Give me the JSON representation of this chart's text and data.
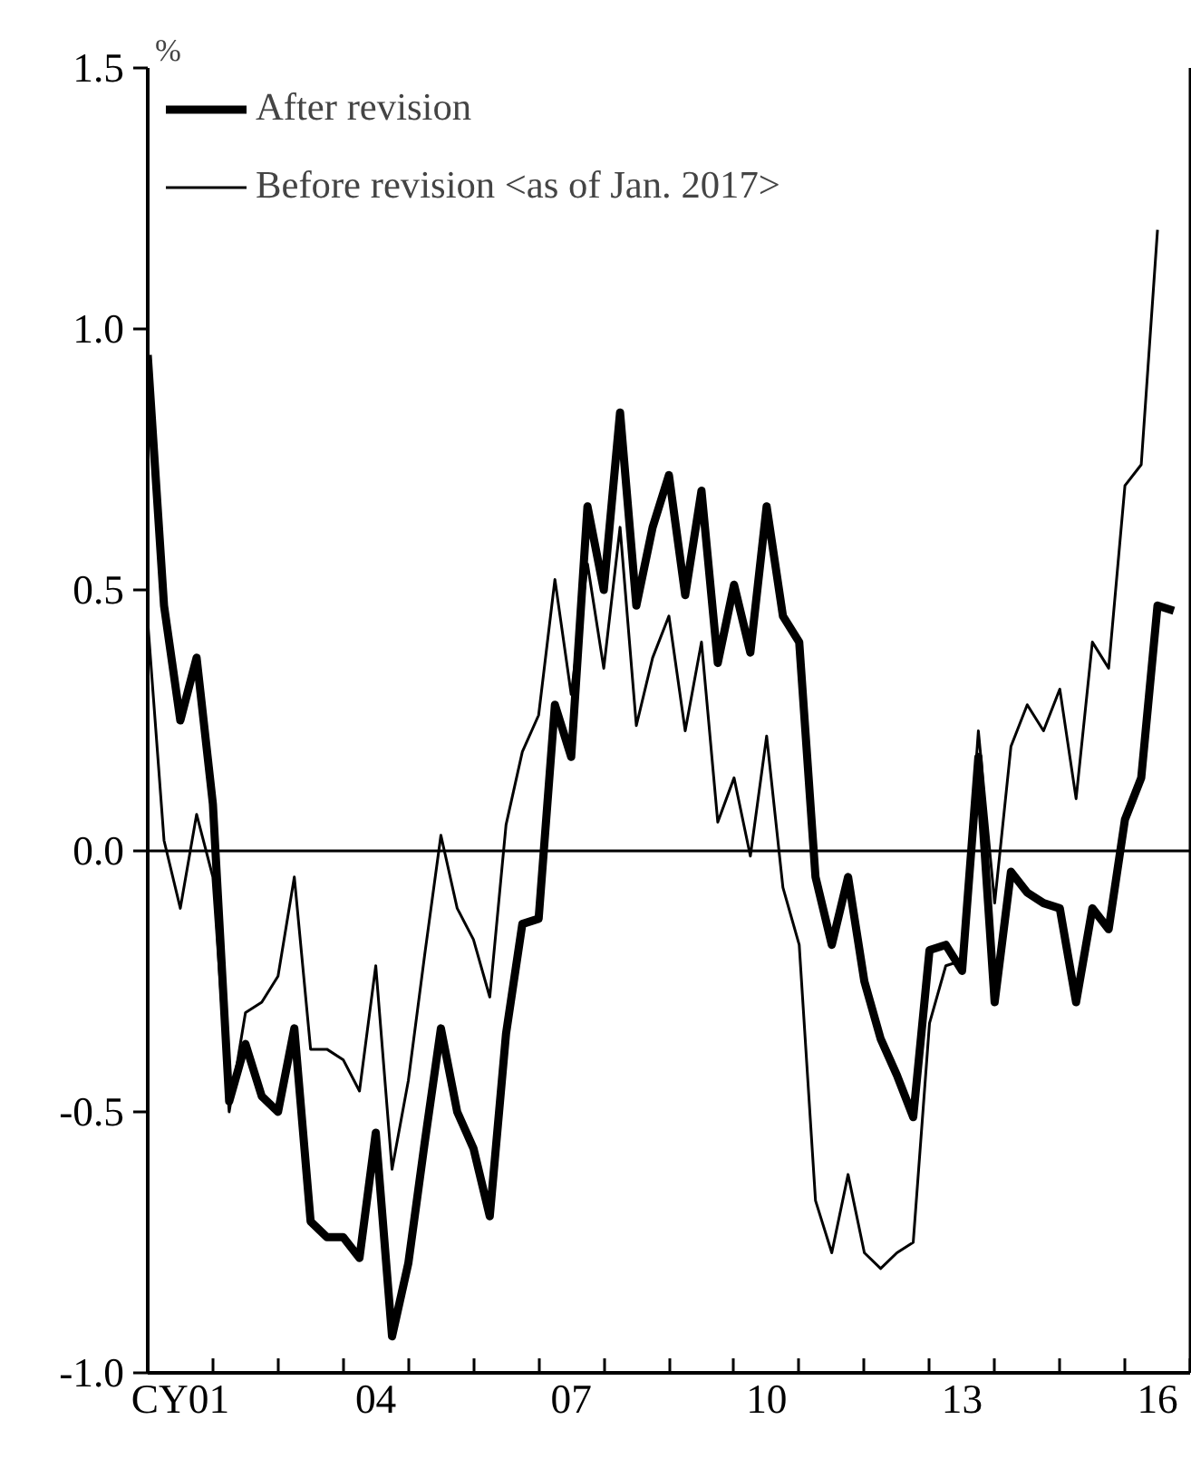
{
  "chart_data": {
    "type": "line",
    "ylabel": "%",
    "categories": [
      null,
      null,
      "CY01",
      null,
      null,
      null,
      null,
      null,
      null,
      null,
      null,
      null,
      null,
      null,
      "04",
      null,
      null,
      null,
      null,
      null,
      null,
      null,
      null,
      null,
      null,
      null,
      "07",
      null,
      null,
      null,
      null,
      null,
      null,
      null,
      null,
      null,
      null,
      null,
      "10",
      null,
      null,
      null,
      null,
      null,
      null,
      null,
      null,
      null,
      null,
      null,
      "13",
      null,
      null,
      null,
      null,
      null,
      null,
      null,
      null,
      null,
      null,
      null,
      "16",
      null
    ],
    "series": [
      {
        "name": "After revision",
        "color": "#000000",
        "values": [
          0.95,
          0.47,
          0.25,
          0.37,
          0.09,
          -0.48,
          -0.37,
          -0.47,
          -0.5,
          -0.34,
          -0.71,
          -0.74,
          -0.74,
          -0.78,
          -0.54,
          -0.93,
          -0.79,
          -0.56,
          -0.34,
          -0.5,
          -0.57,
          -0.7,
          -0.35,
          -0.14,
          -0.13,
          0.28,
          0.18,
          0.66,
          0.5,
          0.84,
          0.47,
          0.62,
          0.72,
          0.49,
          0.69,
          0.36,
          0.51,
          0.38,
          0.66,
          0.45,
          0.4,
          -0.05,
          -0.18,
          -0.05,
          -0.25,
          -0.36,
          -0.43,
          -0.51,
          -0.19,
          -0.18,
          -0.23,
          0.18,
          -0.29,
          -0.04,
          -0.08,
          -0.1,
          -0.11,
          -0.29,
          -0.11,
          -0.15,
          0.06,
          0.14,
          0.47,
          0.46
        ]
      },
      {
        "name": "Before revision <as of Jan. 2017>",
        "color": "#000000",
        "values": [
          0.44,
          0.02,
          -0.11,
          0.07,
          -0.05,
          -0.5,
          -0.31,
          -0.29,
          -0.24,
          -0.05,
          -0.38,
          -0.38,
          -0.4,
          -0.46,
          -0.22,
          -0.61,
          -0.44,
          -0.2,
          0.03,
          -0.11,
          -0.17,
          -0.28,
          0.05,
          0.19,
          0.26,
          0.52,
          0.3,
          0.55,
          0.35,
          0.62,
          0.24,
          0.37,
          0.45,
          0.23,
          0.4,
          0.055,
          0.14,
          -0.01,
          0.22,
          -0.07,
          -0.18,
          -0.67,
          -0.77,
          -0.62,
          -0.77,
          -0.8,
          -0.77,
          -0.75,
          -0.33,
          -0.22,
          -0.21,
          0.23,
          -0.1,
          0.2,
          0.28,
          0.23,
          0.31,
          0.1,
          0.4,
          0.35,
          0.7,
          0.74,
          1.19,
          null
        ]
      }
    ],
    "ylim": [
      -1.0,
      1.5
    ],
    "yticks": [
      {
        "value": -1.0,
        "label": "-1.0"
      },
      {
        "value": -0.5,
        "label": "-0.5"
      },
      {
        "value": 0.0,
        "label": "0.0"
      },
      {
        "value": 0.5,
        "label": "0.5"
      },
      {
        "value": 1.0,
        "label": "1.0"
      },
      {
        "value": 1.5,
        "label": "1.5"
      }
    ],
    "ref_lines": [
      {
        "axis": "y",
        "value": 0,
        "label": null,
        "color": "#000000"
      }
    ],
    "grid": false,
    "legend": "top left",
    "line_style": "solid",
    "marker": "none"
  }
}
